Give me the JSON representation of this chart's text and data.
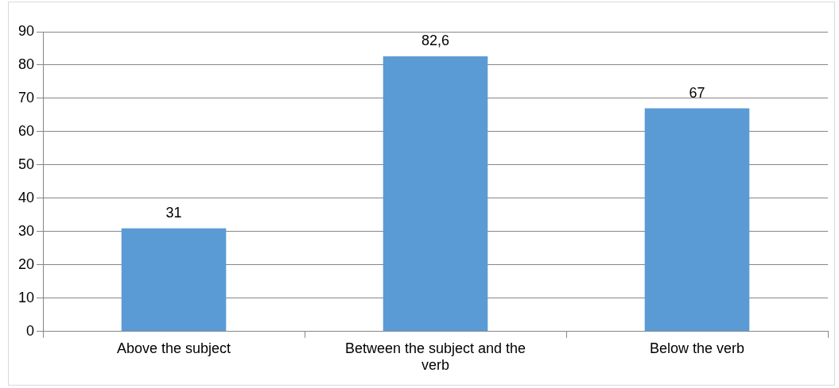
{
  "chart_data": {
    "type": "bar",
    "categories": [
      "Above the subject",
      "Between the subject and the verb",
      "Below the verb"
    ],
    "values": [
      31,
      82.6,
      67
    ],
    "value_labels": [
      "31",
      "82,6",
      "67"
    ],
    "color": "#5b9bd5",
    "ylim": [
      0,
      90
    ],
    "yticks": [
      0,
      10,
      20,
      30,
      40,
      50,
      60,
      70,
      80,
      90
    ],
    "grid": "y"
  }
}
